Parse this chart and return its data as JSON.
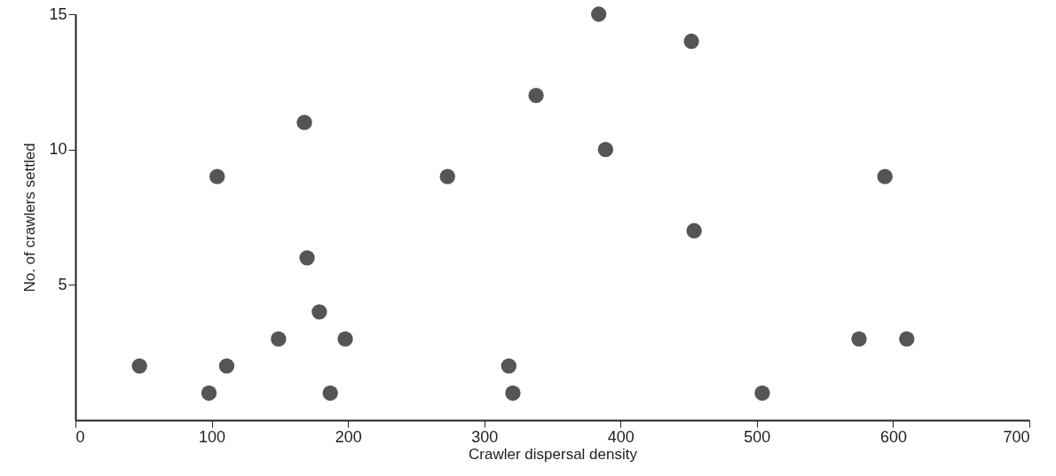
{
  "chart_data": {
    "type": "scatter",
    "xlabel": "Crawler dispersal density",
    "ylabel": "No. of crawlers settled",
    "x": [
      47,
      98,
      104,
      111,
      149,
      168,
      170,
      179,
      187,
      198,
      273,
      318,
      321,
      338,
      384,
      389,
      452,
      454,
      504,
      575,
      594,
      610
    ],
    "series": [
      {
        "color": "#555555",
        "values": [
          2,
          1,
          9,
          2,
          3,
          11,
          6,
          4,
          1,
          3,
          9,
          2,
          1,
          12,
          15,
          10,
          14,
          7,
          1,
          3,
          9,
          3
        ]
      }
    ],
    "xlim": [
      0,
      700
    ],
    "xticks": [
      0,
      100,
      200,
      300,
      400,
      500,
      600,
      700
    ],
    "ylim": [
      0,
      15
    ],
    "yticks": [
      5,
      10,
      15
    ],
    "grid": false,
    "marker": "circle"
  }
}
